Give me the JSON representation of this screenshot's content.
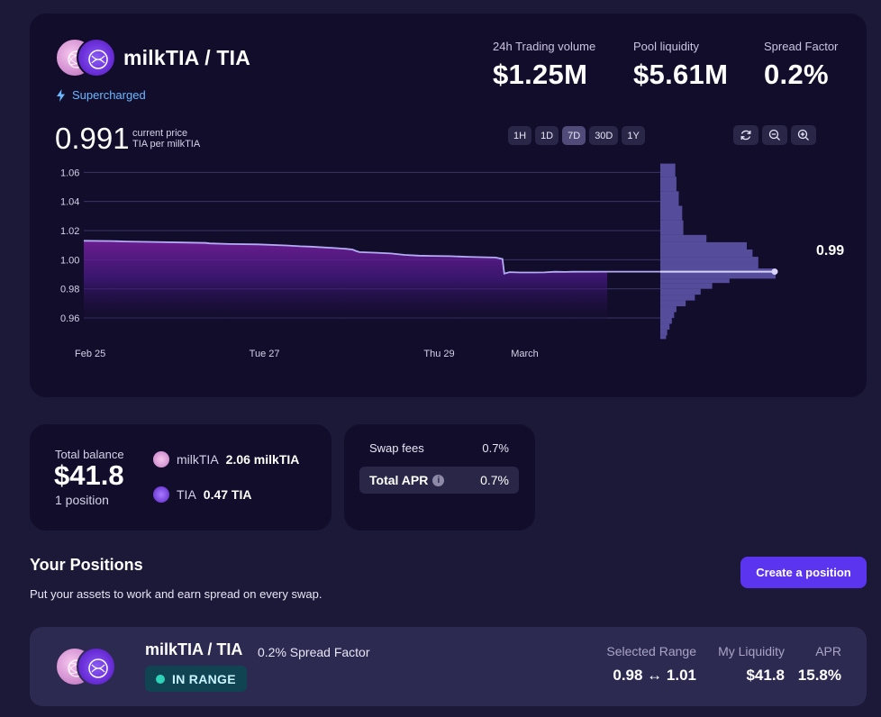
{
  "pool": {
    "title": "milkTIA / TIA",
    "badge": "Supercharged",
    "tokens": [
      "milkTIA",
      "TIA"
    ]
  },
  "stats": {
    "volume_label": "24h Trading volume",
    "volume_value": "$1.25M",
    "liquidity_label": "Pool liquidity",
    "liquidity_value": "$5.61M",
    "spread_label": "Spread Factor",
    "spread_value": "0.2%"
  },
  "price": {
    "current": "0.991",
    "label": "current price",
    "unit": "TIA per milkTIA"
  },
  "timeframes": [
    {
      "label": "1H",
      "active": false
    },
    {
      "label": "1D",
      "active": false
    },
    {
      "label": "7D",
      "active": true
    },
    {
      "label": "30D",
      "active": false
    },
    {
      "label": "1Y",
      "active": false
    }
  ],
  "chart_controls": [
    "refresh-icon",
    "zoom-out-icon",
    "zoom-in-icon"
  ],
  "chart_data": {
    "type": "area",
    "y_ticks": [
      "1.06",
      "1.04",
      "1.02",
      "1.00",
      "0.98",
      "0.96"
    ],
    "x_ticks": [
      "Feb 25",
      "Tue 27",
      "Thu 29",
      "March"
    ],
    "ylim": [
      0.947,
      1.067
    ],
    "grid": true,
    "price_series": [
      [
        0,
        1.013
      ],
      [
        0.08,
        1.0128
      ],
      [
        0.12,
        1.0125
      ],
      [
        0.2,
        1.0122
      ],
      [
        0.28,
        1.0118
      ],
      [
        0.35,
        1.0115
      ],
      [
        0.36,
        1.0112
      ],
      [
        0.42,
        1.0108
      ],
      [
        0.5,
        1.0105
      ],
      [
        0.58,
        1.0098
      ],
      [
        0.62,
        1.0092
      ],
      [
        0.65,
        1.009
      ],
      [
        0.72,
        1.008
      ],
      [
        0.75,
        1.0075
      ],
      [
        0.77,
        1.007
      ],
      [
        0.78,
        1.006
      ],
      [
        0.79,
        1.0052
      ],
      [
        0.84,
        1.0048
      ],
      [
        0.88,
        1.0043
      ],
      [
        0.92,
        1.0033
      ],
      [
        0.96,
        1.0028
      ],
      [
        1.0,
        1.0026
      ],
      [
        1.05,
        1.0024
      ],
      [
        1.1,
        1.002
      ],
      [
        1.15,
        1.0017
      ],
      [
        1.18,
        1.0015
      ],
      [
        1.2,
        1.0005
      ],
      [
        1.205,
        0.9905
      ],
      [
        1.22,
        0.9915
      ],
      [
        1.25,
        0.9912
      ],
      [
        1.29,
        0.9912
      ],
      [
        1.32,
        0.9913
      ],
      [
        1.35,
        0.9917
      ],
      [
        1.38,
        0.9916
      ],
      [
        1.4,
        0.9917
      ],
      [
        1.5,
        0.9918
      ],
      [
        1.65,
        0.9918
      ],
      [
        1.8,
        0.9918
      ],
      [
        1.98,
        0.9918
      ]
    ],
    "x_tick_positions": [
      0,
      0.5,
      1.0,
      1.25
    ],
    "end_label": "0.99",
    "liquidity_depth": [
      [
        1.066,
        0.13
      ],
      [
        1.057,
        0.14
      ],
      [
        1.047,
        0.16
      ],
      [
        1.037,
        0.19
      ],
      [
        1.027,
        0.2
      ],
      [
        1.017,
        0.4
      ],
      [
        1.012,
        0.75
      ],
      [
        1.007,
        0.8
      ],
      [
        1.002,
        0.85
      ],
      [
        0.998,
        0.85
      ],
      [
        0.994,
        1.0
      ],
      [
        0.99,
        1.0
      ],
      [
        0.987,
        0.6
      ],
      [
        0.984,
        0.45
      ],
      [
        0.98,
        0.35
      ],
      [
        0.976,
        0.3
      ],
      [
        0.972,
        0.22
      ],
      [
        0.968,
        0.14
      ],
      [
        0.964,
        0.12
      ],
      [
        0.96,
        0.1
      ],
      [
        0.956,
        0.08
      ],
      [
        0.952,
        0.06
      ],
      [
        0.948,
        0.05
      ]
    ]
  },
  "balance": {
    "label": "Total balance",
    "value": "$41.8",
    "positions": "1 position",
    "assets": [
      {
        "name": "milkTIA",
        "amount": "2.06 milkTIA"
      },
      {
        "name": "TIA",
        "amount": "0.47 TIA"
      }
    ]
  },
  "fees": {
    "swap_label": "Swap fees",
    "swap_value": "0.7%",
    "apr_label": "Total APR",
    "apr_value": "0.7%",
    "info_glyph": "i"
  },
  "positions_section": {
    "title": "Your Positions",
    "subtitle": "Put your assets to work and earn spread on every swap.",
    "create_button": "Create a position"
  },
  "position": {
    "title": "milkTIA / TIA",
    "spread": "0.2% Spread Factor",
    "status": "IN RANGE",
    "range_label": "Selected Range",
    "range_value": "0.98 ↔ 1.01",
    "liquidity_label": "My Liquidity",
    "liquidity_value": "$41.8",
    "apr_label": "APR",
    "apr_value": "15.8%"
  },
  "colors": {
    "background": "#1c1838",
    "card": "#120d2b",
    "accent": "#5b34f0",
    "price_line": "#b3acf5",
    "depth": "#5d54a8",
    "in_range": "#2ed3b7",
    "supercharged": "#6cb8ff"
  }
}
